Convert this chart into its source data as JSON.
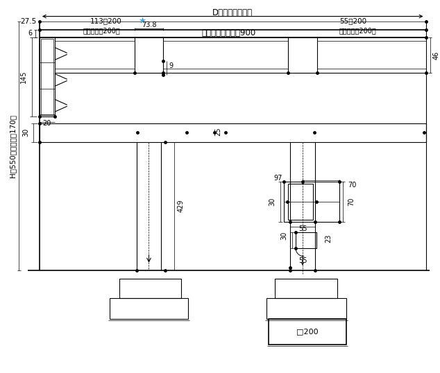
{
  "dim_D": "D（床板の長さ）",
  "dim_113_200": "113～200",
  "dim_113_200_sub": "（標準寸法200）",
  "dim_55_200": "55～200",
  "dim_55_200_sub": "（標準寸法200）",
  "dim_pitch": "大引ピッチ：最大900",
  "dim_27_5": "27.5",
  "dim_6": "6",
  "dim_145": "145",
  "dim_20": "20",
  "dim_73_8": "73.8",
  "dim_9": "9",
  "dim_30": "30",
  "dim_25": "25",
  "dim_429": "429",
  "dim_46": "46",
  "dim_H": "H：550（切断最小170）",
  "dim_97": "97",
  "dim_70_top": "70",
  "dim_70_right": "70",
  "dim_30b": "30",
  "dim_55b": "55",
  "dim_23": "23",
  "dim_30c": "30",
  "dim_55c": "55",
  "dim_200": "□200",
  "star_color": "#4BA3D3",
  "line_color": "#000000",
  "bg_color": "#ffffff"
}
